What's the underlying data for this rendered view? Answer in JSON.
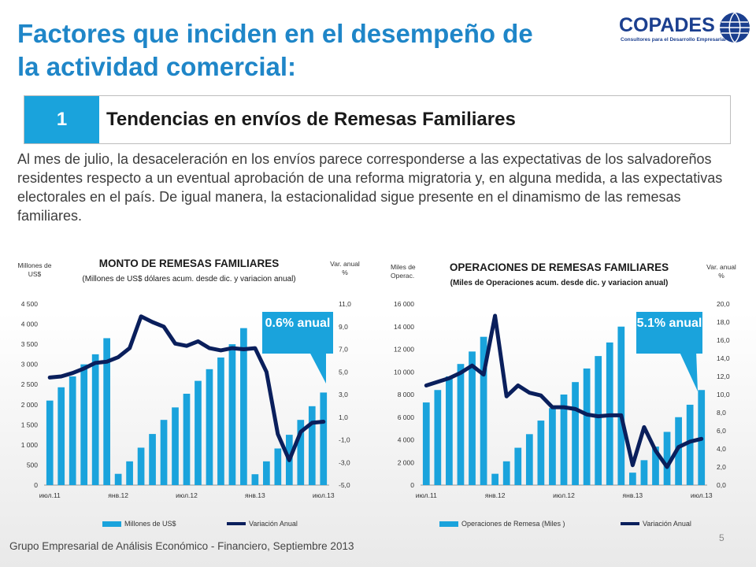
{
  "title_line1": "Factores que inciden en el desempeño de",
  "title_line2": "la actividad comercial:",
  "logo": {
    "name": "COPADES",
    "subtitle": "Consultores para el Desarrollo Empresarial"
  },
  "banner": {
    "number": "1",
    "text": "Tendencias en envíos de Remesas Familiares"
  },
  "paragraph": "Al mes de julio, la desaceleración en los envíos parece corresponderse a las expectativas de los salvadoreños residentes respecto a un eventual aprobación de una reforma migratoria y, en alguna medida, a las expectativas electorales en el país. De igual manera, la estacionalidad sigue presente en el dinamismo de las remesas familiares.",
  "footer": "Grupo Empresarial de Análisis Económico - Financiero, Septiembre 2013",
  "page_number": "5",
  "colors": {
    "title": "#1f86c8",
    "bar": "#1aa3dc",
    "line": "#0a1f5c",
    "callout": "#1aa3dc"
  },
  "chart_data": [
    {
      "type": "bar",
      "title": "MONTO DE REMESAS FAMILIARES",
      "subtitle": "(Millones de US$ dólares acum. desde dic. y variacion anual)",
      "ylabel": "Millones de US$",
      "y2label": "Var. anual %",
      "callout": "0.6% anual",
      "x_tick_labels": [
        "июл.11",
        "янв.12",
        "июл.12",
        "янв.13",
        "июл.13"
      ],
      "y_ticks": [
        "0",
        "500",
        "1 000",
        "1 500",
        "2 000",
        "2 500",
        "3 000",
        "3 500",
        "4 000",
        "4 500"
      ],
      "y2_ticks": [
        "-5,0",
        "-3,0",
        "-1,0",
        "1,0",
        "3,0",
        "5,0",
        "7,0",
        "9,0",
        "11,0"
      ],
      "ylim": [
        0,
        4500
      ],
      "y2lim": [
        -5,
        11
      ],
      "series": [
        {
          "name": "Millones de US$",
          "type": "bar",
          "values": [
            2100,
            2430,
            2700,
            3000,
            3250,
            3650,
            280,
            590,
            930,
            1270,
            1620,
            1930,
            2270,
            2590,
            2880,
            3170,
            3500,
            3900,
            270,
            590,
            910,
            1250,
            1620,
            1960,
            2300
          ]
        },
        {
          "name": "Variación Anual",
          "type": "line",
          "values": [
            4.5,
            4.6,
            4.9,
            5.3,
            5.8,
            5.9,
            6.3,
            7.1,
            9.9,
            9.4,
            9.0,
            7.5,
            7.3,
            7.7,
            7.1,
            6.9,
            7.1,
            7.0,
            7.1,
            5.0,
            -0.5,
            -2.8,
            -0.3,
            0.5,
            0.6
          ]
        }
      ]
    },
    {
      "type": "bar",
      "title": "OPERACIONES DE REMESAS FAMILIARES",
      "subtitle": "(Miles de Operaciones acum. desde dic.  y variacion anual)",
      "ylabel": "Miles de Operac.",
      "y2label": "Var. anual %",
      "callout": "5.1% anual",
      "x_tick_labels": [
        "июл.11",
        "янв.12",
        "июл.12",
        "янв.13",
        "июл.13"
      ],
      "y_ticks": [
        "0",
        "2 000",
        "4 000",
        "6 000",
        "8 000",
        "10 000",
        "12 000",
        "14 000",
        "16 000"
      ],
      "y2_ticks": [
        "0,0",
        "2,0",
        "4,0",
        "6,0",
        "8,0",
        "10,0",
        "12,0",
        "14,0",
        "16,0",
        "18,0",
        "20,0"
      ],
      "ylim": [
        0,
        16000
      ],
      "y2lim": [
        0,
        20
      ],
      "series": [
        {
          "name": "Operaciones de Remesa (Miles )",
          "type": "bar",
          "values": [
            7300,
            8400,
            9600,
            10700,
            11800,
            13100,
            1000,
            2100,
            3300,
            4500,
            5700,
            6800,
            8000,
            9100,
            10300,
            11400,
            12600,
            14000,
            1100,
            2200,
            3400,
            4700,
            6000,
            7100,
            8400
          ]
        },
        {
          "name": "Variación Anual",
          "type": "line",
          "values": [
            11.0,
            11.4,
            11.8,
            12.4,
            13.2,
            12.2,
            18.7,
            9.8,
            11.0,
            10.2,
            9.9,
            8.6,
            8.6,
            8.4,
            7.8,
            7.6,
            7.7,
            7.7,
            2.2,
            6.4,
            3.8,
            2.0,
            4.2,
            4.8,
            5.1
          ]
        }
      ]
    }
  ]
}
